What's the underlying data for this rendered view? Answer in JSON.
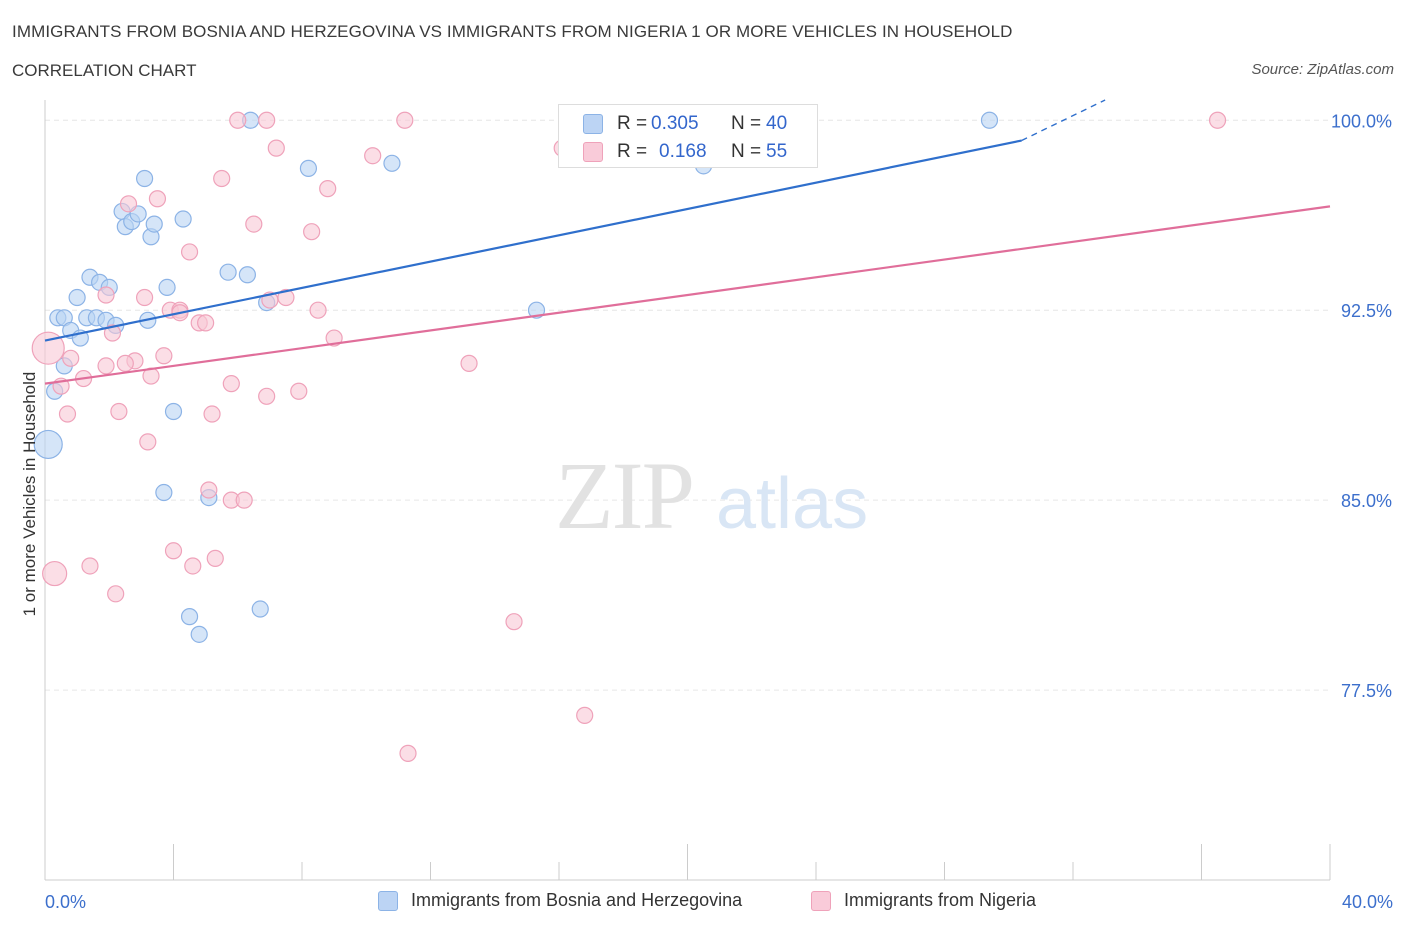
{
  "header": {
    "title": "IMMIGRANTS FROM BOSNIA AND HERZEGOVINA VS IMMIGRANTS FROM NIGERIA 1 OR MORE VEHICLES IN HOUSEHOLD",
    "subtitle": "CORRELATION CHART",
    "source": "Source: ZipAtlas.com"
  },
  "watermark": {
    "zip": "ZIP",
    "atlas": "atlas"
  },
  "legend_stats": [
    {
      "r_label": "R = ",
      "r_value": "0.305",
      "n_label": "N = ",
      "n_value": "40",
      "color": "#a9c8f0"
    },
    {
      "r_label": "R = ",
      "r_value": "0.168",
      "n_label": "N = ",
      "n_value": "55",
      "color": "#f5b8cb"
    }
  ],
  "chart_data": {
    "type": "scatter",
    "ylabel": "1 or more Vehicles in Household",
    "xlim": [
      0,
      40
    ],
    "ylim": [
      70,
      100.8
    ],
    "x_tick_labels": [
      "0.0%",
      "40.0%"
    ],
    "y_ticks": [
      77.5,
      85.0,
      92.5,
      100.0
    ],
    "y_tick_labels": [
      "77.5%",
      "85.0%",
      "92.5%",
      "100.0%"
    ],
    "grid": true,
    "legend_position": "bottom",
    "colors": {
      "bosnia_fill": "#b9d3f3",
      "bosnia_stroke": "#8cb3e6",
      "bosnia_line": "#2f6fcc",
      "nigeria_fill": "#f8c8d6",
      "nigeria_stroke": "#efa2ba",
      "nigeria_line": "#e06e9a"
    },
    "series": [
      {
        "name": "Immigrants from Bosnia and Herzegovina",
        "trend": {
          "x": [
            0,
            30.4
          ],
          "y": [
            91.3,
            99.2
          ],
          "dashed_to": [
            33.0,
            100.8
          ]
        },
        "points": [
          {
            "x": 0.4,
            "y": 92.2
          },
          {
            "x": 0.6,
            "y": 92.2
          },
          {
            "x": 0.8,
            "y": 91.7
          },
          {
            "x": 1.0,
            "y": 93.0
          },
          {
            "x": 1.3,
            "y": 92.2
          },
          {
            "x": 1.4,
            "y": 93.8
          },
          {
            "x": 1.6,
            "y": 92.2
          },
          {
            "x": 1.7,
            "y": 93.6
          },
          {
            "x": 1.9,
            "y": 92.1
          },
          {
            "x": 2.0,
            "y": 93.4
          },
          {
            "x": 2.2,
            "y": 91.9
          },
          {
            "x": 2.4,
            "y": 96.4
          },
          {
            "x": 2.5,
            "y": 95.8
          },
          {
            "x": 2.7,
            "y": 96.0
          },
          {
            "x": 2.9,
            "y": 96.3
          },
          {
            "x": 3.1,
            "y": 97.7
          },
          {
            "x": 3.2,
            "y": 92.1
          },
          {
            "x": 3.3,
            "y": 95.4
          },
          {
            "x": 3.4,
            "y": 95.9
          },
          {
            "x": 3.8,
            "y": 93.4
          },
          {
            "x": 4.0,
            "y": 88.5
          },
          {
            "x": 4.3,
            "y": 96.1
          },
          {
            "x": 5.7,
            "y": 94.0
          },
          {
            "x": 6.3,
            "y": 93.9
          },
          {
            "x": 6.9,
            "y": 92.8
          },
          {
            "x": 8.2,
            "y": 98.1
          },
          {
            "x": 10.8,
            "y": 98.3
          },
          {
            "x": 15.3,
            "y": 92.5
          },
          {
            "x": 20.5,
            "y": 98.2
          },
          {
            "x": 29.4,
            "y": 100.0
          },
          {
            "x": 6.4,
            "y": 100.0
          },
          {
            "x": 3.7,
            "y": 85.3
          },
          {
            "x": 4.5,
            "y": 80.4
          },
          {
            "x": 4.8,
            "y": 79.7
          },
          {
            "x": 5.1,
            "y": 85.1
          },
          {
            "x": 6.7,
            "y": 80.7
          },
          {
            "x": 0.3,
            "y": 89.3
          },
          {
            "x": 0.6,
            "y": 90.3
          },
          {
            "x": 1.1,
            "y": 91.4
          },
          {
            "x": 0.1,
            "y": 87.2,
            "r": 14
          }
        ]
      },
      {
        "name": "Immigrants from Nigeria",
        "trend": {
          "x": [
            0,
            40
          ],
          "y": [
            89.6,
            96.6
          ]
        },
        "points": [
          {
            "x": 0.1,
            "y": 91.0,
            "r": 16
          },
          {
            "x": 0.3,
            "y": 82.1,
            "r": 12
          },
          {
            "x": 0.5,
            "y": 89.5
          },
          {
            "x": 0.7,
            "y": 88.4
          },
          {
            "x": 0.8,
            "y": 90.6
          },
          {
            "x": 1.2,
            "y": 89.8
          },
          {
            "x": 1.4,
            "y": 82.4
          },
          {
            "x": 1.9,
            "y": 90.3
          },
          {
            "x": 1.9,
            "y": 93.1
          },
          {
            "x": 2.1,
            "y": 91.6
          },
          {
            "x": 2.2,
            "y": 81.3
          },
          {
            "x": 2.3,
            "y": 88.5
          },
          {
            "x": 2.6,
            "y": 96.7
          },
          {
            "x": 2.8,
            "y": 90.5
          },
          {
            "x": 3.1,
            "y": 93.0
          },
          {
            "x": 3.2,
            "y": 87.3
          },
          {
            "x": 3.3,
            "y": 89.9
          },
          {
            "x": 3.5,
            "y": 96.9
          },
          {
            "x": 3.7,
            "y": 90.7
          },
          {
            "x": 3.9,
            "y": 92.5
          },
          {
            "x": 4.0,
            "y": 83.0
          },
          {
            "x": 4.2,
            "y": 92.5
          },
          {
            "x": 4.5,
            "y": 94.8
          },
          {
            "x": 4.6,
            "y": 82.4
          },
          {
            "x": 4.8,
            "y": 92.0
          },
          {
            "x": 5.1,
            "y": 85.4
          },
          {
            "x": 5.2,
            "y": 88.4
          },
          {
            "x": 5.3,
            "y": 82.7
          },
          {
            "x": 5.5,
            "y": 97.7
          },
          {
            "x": 5.8,
            "y": 89.6
          },
          {
            "x": 5.8,
            "y": 85.0
          },
          {
            "x": 6.2,
            "y": 85.0
          },
          {
            "x": 6.5,
            "y": 95.9
          },
          {
            "x": 6.9,
            "y": 89.1
          },
          {
            "x": 7.0,
            "y": 92.9
          },
          {
            "x": 7.2,
            "y": 98.9
          },
          {
            "x": 7.5,
            "y": 93.0
          },
          {
            "x": 7.9,
            "y": 89.3
          },
          {
            "x": 8.3,
            "y": 95.6
          },
          {
            "x": 8.5,
            "y": 92.5
          },
          {
            "x": 8.8,
            "y": 97.3
          },
          {
            "x": 9.0,
            "y": 91.4
          },
          {
            "x": 10.2,
            "y": 98.6
          },
          {
            "x": 11.2,
            "y": 100.0
          },
          {
            "x": 11.3,
            "y": 75.0
          },
          {
            "x": 13.2,
            "y": 90.4
          },
          {
            "x": 14.6,
            "y": 80.2
          },
          {
            "x": 16.1,
            "y": 98.9
          },
          {
            "x": 16.8,
            "y": 76.5
          },
          {
            "x": 36.5,
            "y": 100.0
          },
          {
            "x": 6.0,
            "y": 100.0
          },
          {
            "x": 6.9,
            "y": 100.0
          },
          {
            "x": 5.0,
            "y": 92.0
          },
          {
            "x": 2.5,
            "y": 90.4
          },
          {
            "x": 4.2,
            "y": 92.4
          }
        ]
      }
    ]
  }
}
